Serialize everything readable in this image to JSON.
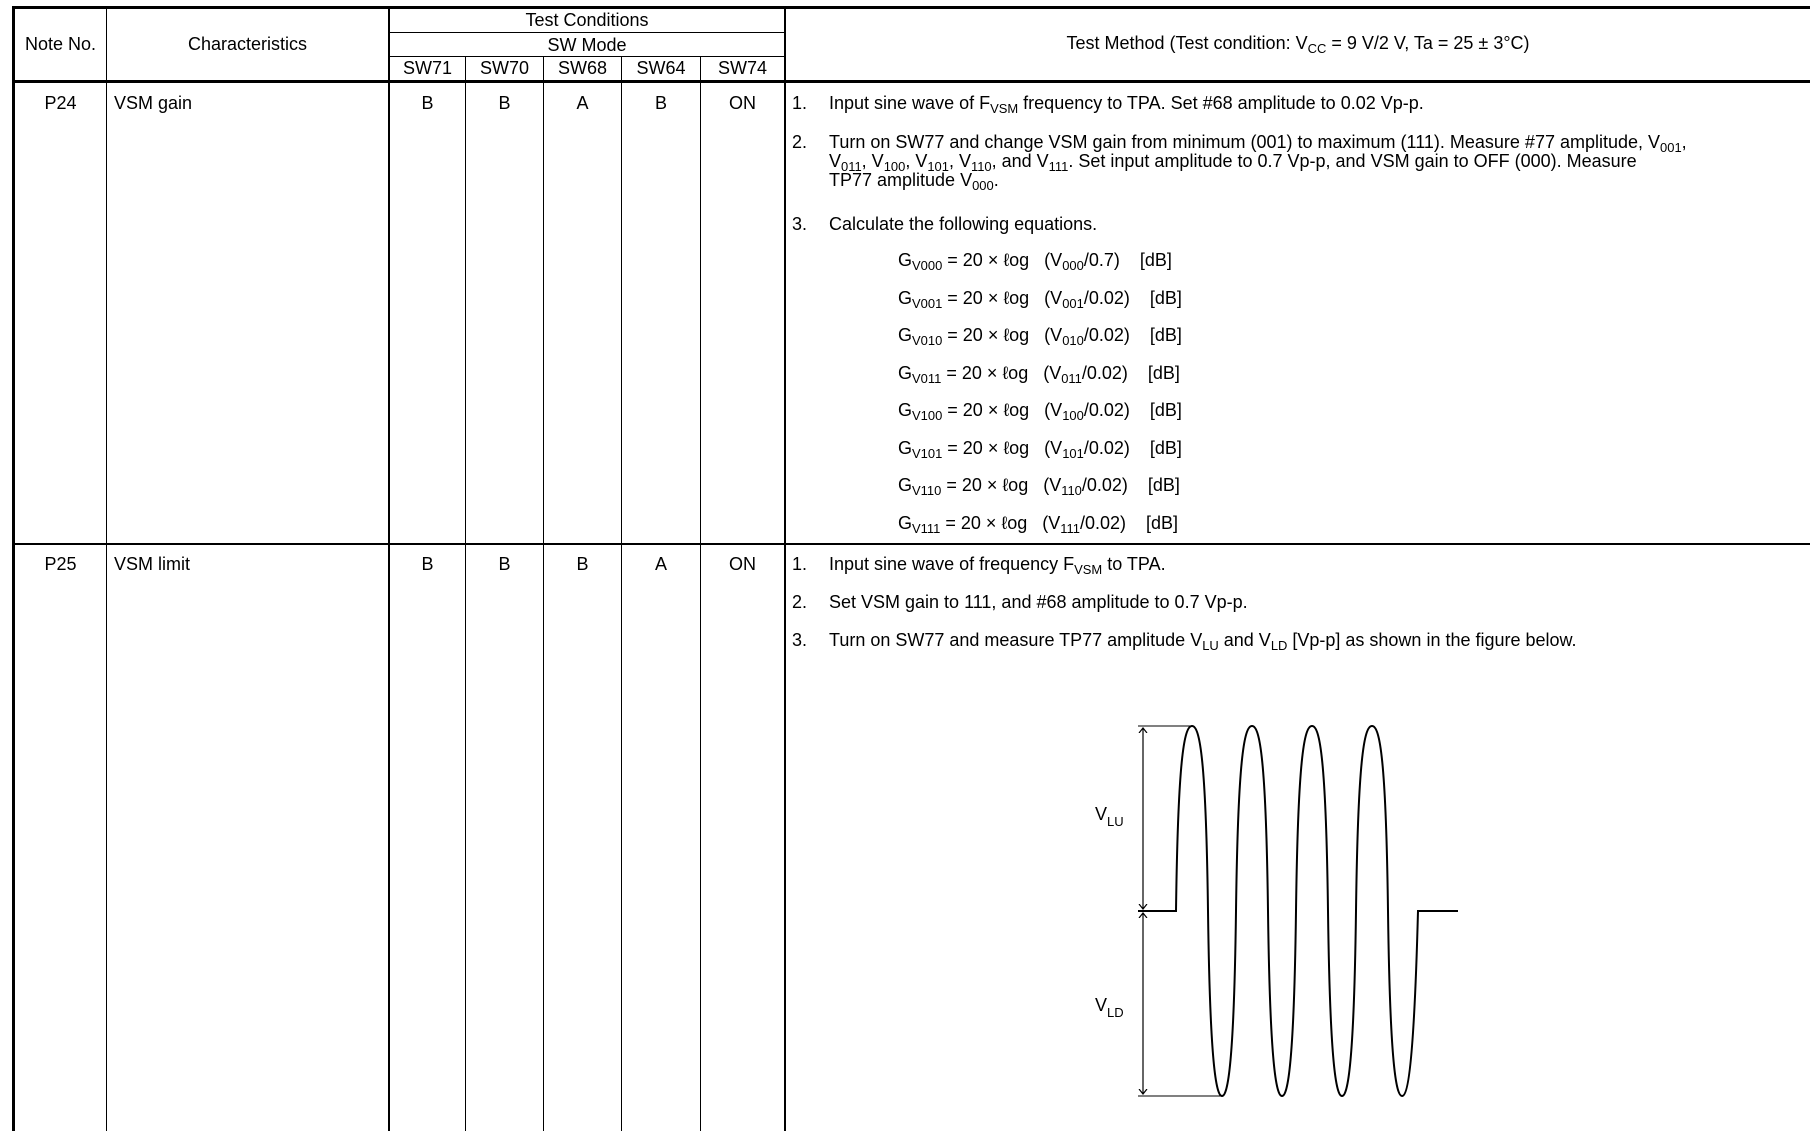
{
  "header": {
    "note_no": "Note No.",
    "characteristics": "Characteristics",
    "test_conditions": "Test Conditions",
    "sw_mode": "SW Mode",
    "switches": [
      "SW71",
      "SW70",
      "SW68",
      "SW64",
      "SW74"
    ],
    "test_method_prefix": "Test Method (Test condition: V",
    "test_method_sub": "CC",
    "test_method_suffix": " = 9 V/2 V, Ta = 25 ± 3°C)"
  },
  "rows": [
    {
      "note": "P24",
      "characteristic": "VSM gain",
      "sw": [
        "B",
        "B",
        "A",
        "B",
        "ON"
      ],
      "steps": [
        {
          "num": "1.",
          "parts": [
            "Input sine wave of F",
            "VSM",
            " frequency to TPA. Set #68 amplitude to 0.02 Vp-p."
          ]
        },
        {
          "num": "2.",
          "line1": [
            "Turn on SW77 and change VSM gain from minimum (001) to maximum (111). Measure #77 amplitude, V",
            "001",
            ","
          ],
          "line2": [
            "V",
            "011",
            ", V",
            "100",
            ", V",
            "101",
            ", V",
            "110",
            ", and V",
            "111",
            ". Set input amplitude to 0.7 Vp-p, and VSM gain to OFF (000). Measure"
          ],
          "line3": [
            "TP77 amplitude V",
            "000",
            "."
          ]
        },
        {
          "num": "3.",
          "parts": [
            "Calculate the following equations."
          ]
        }
      ],
      "equations": [
        {
          "g": "G",
          "sub": "V000",
          "mid": " = 20 × ℓog   (V",
          "vsub": "000",
          "tail": "/0.7)    [dB]"
        },
        {
          "g": "G",
          "sub": "V001",
          "mid": " = 20 × ℓog   (V",
          "vsub": "001",
          "tail": "/0.02)    [dB]"
        },
        {
          "g": "G",
          "sub": "V010",
          "mid": " = 20 × ℓog   (V",
          "vsub": "010",
          "tail": "/0.02)    [dB]"
        },
        {
          "g": "G",
          "sub": "V011",
          "mid": " = 20 × ℓog   (V",
          "vsub": "011",
          "tail": "/0.02)    [dB]"
        },
        {
          "g": "G",
          "sub": "V100",
          "mid": " = 20 × ℓog   (V",
          "vsub": "100",
          "tail": "/0.02)    [dB]"
        },
        {
          "g": "G",
          "sub": "V101",
          "mid": " = 20 × ℓog   (V",
          "vsub": "101",
          "tail": "/0.02)    [dB]"
        },
        {
          "g": "G",
          "sub": "V110",
          "mid": " = 20 × ℓog   (V",
          "vsub": "110",
          "tail": "/0.02)    [dB]"
        },
        {
          "g": "G",
          "sub": "V111",
          "mid": " = 20 × ℓog   (V",
          "vsub": "111",
          "tail": "/0.02)    [dB]"
        }
      ]
    },
    {
      "note": "P25",
      "characteristic": "VSM limit",
      "sw": [
        "B",
        "B",
        "B",
        "A",
        "ON"
      ],
      "steps": [
        {
          "num": "1.",
          "parts": [
            "Input sine wave of frequency F",
            "VSM",
            " to TPA."
          ]
        },
        {
          "num": "2.",
          "parts": [
            "Set VSM gain to 111, and #68 amplitude to 0.7 Vp-p."
          ]
        },
        {
          "num": "3.",
          "parts": [
            "Turn on SW77 and measure TP77 amplitude V",
            "LU",
            " and V",
            "LD",
            " [Vp-p] as shown in the figure below."
          ]
        }
      ],
      "figure": {
        "upper_label": "V",
        "upper_sub": "LU",
        "lower_label": "V",
        "lower_sub": "LD"
      }
    }
  ]
}
